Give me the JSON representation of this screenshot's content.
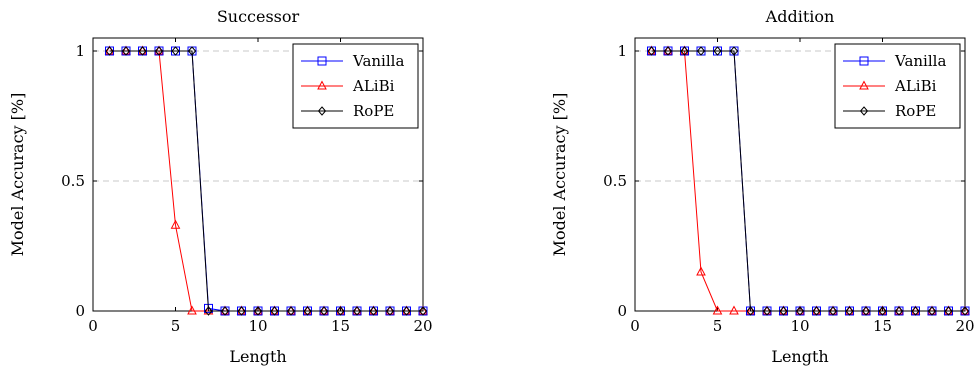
{
  "chart_data": [
    {
      "type": "line",
      "title": "Successor",
      "xlabel": "Length",
      "ylabel": "Model Accuracy [%]",
      "xlim": [
        0,
        20
      ],
      "ylim": [
        0,
        1.05
      ],
      "xticks": [
        "0",
        "5",
        "10",
        "15",
        "20"
      ],
      "xtick_values": [
        0,
        5,
        10,
        15,
        20
      ],
      "yticks": [
        "0",
        "0.5",
        "1"
      ],
      "ytick_values": [
        0,
        0.5,
        1
      ],
      "grid": "horizontal dashed",
      "legend_position": "top-right",
      "x": [
        1,
        2,
        3,
        4,
        5,
        6,
        7,
        8,
        9,
        10,
        11,
        12,
        13,
        14,
        15,
        16,
        17,
        18,
        19,
        20
      ],
      "series": [
        {
          "name": "Vanilla",
          "color": "#0000ff",
          "marker": "square",
          "values": [
            1,
            1,
            1,
            1,
            1,
            1,
            0.01,
            0,
            0,
            0,
            0,
            0,
            0,
            0,
            0,
            0,
            0,
            0,
            0,
            0
          ]
        },
        {
          "name": "ALiBi",
          "color": "#ff0000",
          "marker": "triangle",
          "values": [
            1,
            1,
            1,
            1,
            0.33,
            0,
            0,
            0,
            0,
            0,
            0,
            0,
            0,
            0,
            0,
            0,
            0,
            0,
            0,
            0
          ]
        },
        {
          "name": "RoPE",
          "color": "#000000",
          "marker": "diamond",
          "values": [
            1,
            1,
            1,
            1,
            1,
            1,
            0,
            0,
            0,
            0,
            0,
            0,
            0,
            0,
            0,
            0,
            0,
            0,
            0,
            0
          ]
        }
      ]
    },
    {
      "type": "line",
      "title": "Addition",
      "xlabel": "Length",
      "ylabel": "Model Accuracy [%]",
      "xlim": [
        0,
        20
      ],
      "ylim": [
        0,
        1.05
      ],
      "xticks": [
        "0",
        "5",
        "10",
        "15",
        "20"
      ],
      "xtick_values": [
        0,
        5,
        10,
        15,
        20
      ],
      "yticks": [
        "0",
        "0.5",
        "1"
      ],
      "ytick_values": [
        0,
        0.5,
        1
      ],
      "grid": "horizontal dashed",
      "legend_position": "top-right",
      "x": [
        1,
        2,
        3,
        4,
        5,
        6,
        7,
        8,
        9,
        10,
        11,
        12,
        13,
        14,
        15,
        16,
        17,
        18,
        19,
        20
      ],
      "series": [
        {
          "name": "Vanilla",
          "color": "#0000ff",
          "marker": "square",
          "values": [
            1,
            1,
            1,
            1,
            1,
            1,
            0,
            0,
            0,
            0,
            0,
            0,
            0,
            0,
            0,
            0,
            0,
            0,
            0,
            0
          ]
        },
        {
          "name": "ALiBi",
          "color": "#ff0000",
          "marker": "triangle",
          "values": [
            1,
            1,
            1,
            0.15,
            0,
            0,
            0,
            0,
            0,
            0,
            0,
            0,
            0,
            0,
            0,
            0,
            0,
            0,
            0,
            0
          ]
        },
        {
          "name": "RoPE",
          "color": "#000000",
          "marker": "diamond",
          "values": [
            1,
            1,
            1,
            1,
            1,
            1,
            0,
            0,
            0,
            0,
            0,
            0,
            0,
            0,
            0,
            0,
            0,
            0,
            0,
            0
          ]
        }
      ]
    }
  ]
}
